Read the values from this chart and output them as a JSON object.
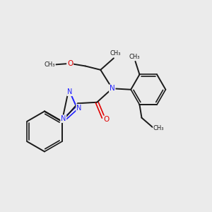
{
  "background_color": "#ebebeb",
  "bond_color": "#1a1a1a",
  "N_color": "#2020ff",
  "O_color": "#e00000",
  "figsize": [
    3.0,
    3.0
  ],
  "dpi": 100,
  "xlim": [
    0,
    10
  ],
  "ylim": [
    0,
    10
  ]
}
